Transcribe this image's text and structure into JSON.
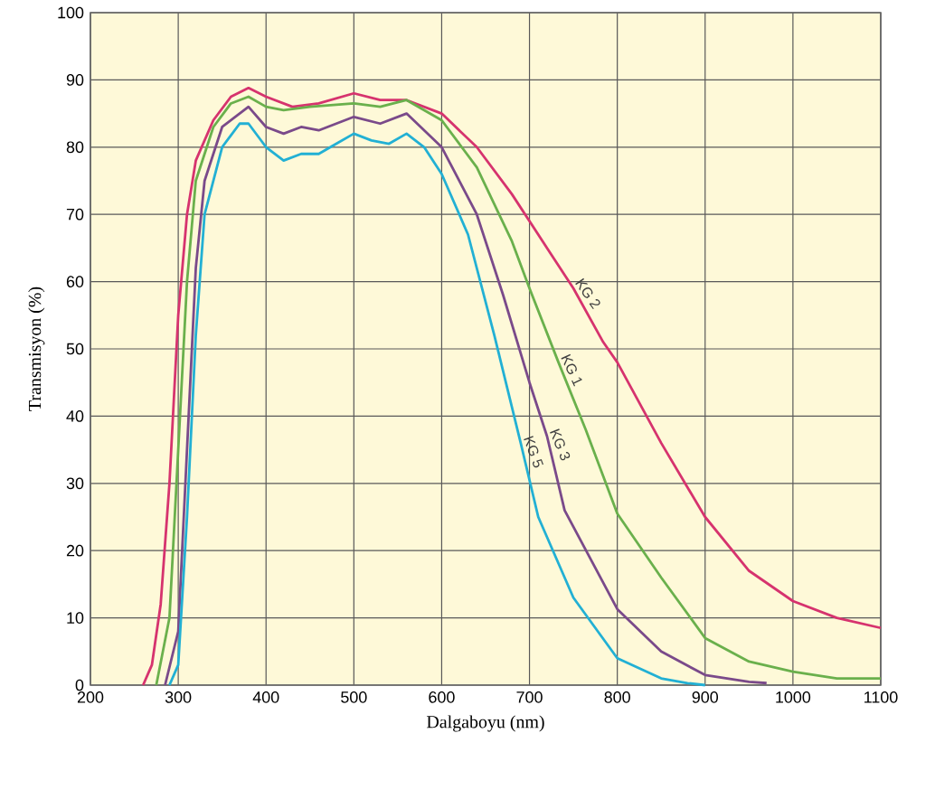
{
  "chart_data": {
    "type": "line",
    "xlabel": "Dalgaboyu (nm)",
    "ylabel": "Transmisyon (%)",
    "xlim": [
      200,
      1100
    ],
    "ylim": [
      0,
      100
    ],
    "xticks": [
      200,
      300,
      400,
      500,
      600,
      700,
      800,
      900,
      1000,
      1100
    ],
    "yticks": [
      0,
      10,
      20,
      30,
      40,
      50,
      60,
      70,
      80,
      90,
      100
    ],
    "grid": true,
    "series": [
      {
        "name": "KG 2",
        "color": "#d6336e",
        "x": [
          260,
          270,
          280,
          290,
          300,
          310,
          320,
          340,
          360,
          380,
          400,
          430,
          460,
          500,
          530,
          560,
          600,
          640,
          680,
          720,
          750,
          784,
          800,
          850,
          900,
          950,
          1000,
          1050,
          1100
        ],
        "values": [
          0,
          3,
          12,
          30,
          55,
          70,
          78,
          84,
          87.5,
          88.8,
          87.5,
          86,
          86.5,
          88,
          87,
          87,
          85,
          80,
          73,
          65,
          59,
          51,
          48,
          36,
          25,
          17,
          12.5,
          10,
          8.5
        ]
      },
      {
        "name": "KG 1",
        "color": "#6ab04c",
        "x": [
          275,
          290,
          300,
          310,
          320,
          340,
          360,
          380,
          400,
          420,
          450,
          500,
          530,
          560,
          600,
          640,
          680,
          700,
          733,
          764,
          800,
          850,
          900,
          950,
          1000,
          1050,
          1100
        ],
        "values": [
          0,
          10,
          35,
          60,
          75,
          83,
          86.5,
          87.5,
          86,
          85.5,
          86,
          86.5,
          86,
          87,
          84,
          77,
          66,
          59,
          48,
          38,
          25.5,
          16,
          7,
          3.5,
          2,
          1,
          1
        ]
      },
      {
        "name": "KG 3",
        "color": "#7a4a8a",
        "x": [
          285,
          300,
          310,
          320,
          330,
          350,
          380,
          400,
          420,
          440,
          460,
          500,
          530,
          560,
          600,
          640,
          670,
          700,
          720,
          740,
          800,
          850,
          900,
          950,
          970
        ],
        "values": [
          0,
          8,
          35,
          62,
          75,
          83,
          86,
          83,
          82,
          83,
          82.5,
          84.5,
          83.5,
          85,
          80,
          70,
          58,
          45,
          37,
          26,
          11.3,
          5,
          1.5,
          0.5,
          0.3
        ]
      },
      {
        "name": "KG 5",
        "color": "#22b0d4",
        "x": [
          290,
          300,
          310,
          320,
          330,
          350,
          370,
          380,
          400,
          420,
          440,
          460,
          480,
          500,
          520,
          540,
          560,
          580,
          600,
          630,
          660,
          690,
          710,
          750,
          800,
          850,
          880,
          900
        ],
        "values": [
          0,
          3,
          25,
          52,
          70,
          80,
          83.5,
          83.5,
          80,
          78,
          79,
          79,
          80.5,
          82,
          81,
          80.5,
          82,
          80,
          76,
          67,
          52,
          36,
          25,
          13,
          4,
          1,
          0.3,
          0
        ]
      }
    ]
  }
}
